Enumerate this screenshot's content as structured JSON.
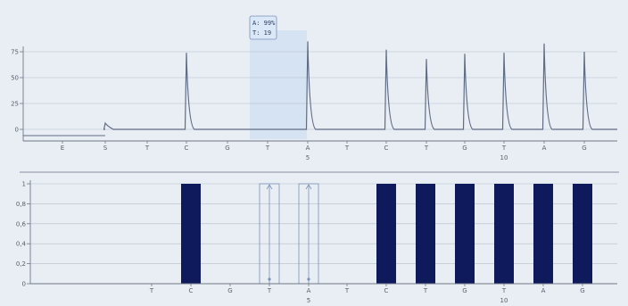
{
  "chart_data": [
    {
      "type": "line",
      "name": "pyrogram-trace",
      "yticks": [
        "75",
        "50",
        "25",
        "0"
      ],
      "ylim": [
        -8,
        90
      ],
      "sequence": [
        "E",
        "S",
        "T",
        "C",
        "G",
        "T",
        "A",
        "T",
        "C",
        "T",
        "G",
        "T",
        "A",
        "G"
      ],
      "position_labels": [
        {
          "index": 6,
          "label": "5"
        },
        {
          "index": 11,
          "label": "10"
        }
      ],
      "peaks": [
        {
          "base": "S",
          "value": 6
        },
        {
          "base": "C",
          "value": 74
        },
        {
          "base": "A",
          "value": 85
        },
        {
          "base": "C",
          "value": 77
        },
        {
          "base": "T",
          "value": 68
        },
        {
          "base": "G",
          "value": 73
        },
        {
          "base": "T",
          "value": 74
        },
        {
          "base": "A",
          "value": 83
        },
        {
          "base": "G",
          "value": 75
        }
      ],
      "tooltip": {
        "line1": "A: 99%",
        "line2": "T: 19"
      }
    },
    {
      "type": "bar",
      "name": "dispensation-histogram",
      "yticks": [
        "1",
        "0,8",
        "0,6",
        "0,4",
        "0,2",
        "0"
      ],
      "ylim": [
        0,
        1
      ],
      "categories": [
        "T",
        "C",
        "G",
        "T",
        "A",
        "T",
        "C",
        "T",
        "G",
        "T",
        "A",
        "G"
      ],
      "values": [
        0,
        1,
        0,
        0,
        0,
        0,
        1,
        1,
        1,
        1,
        1,
        1
      ],
      "outlined": [
        3,
        4
      ],
      "position_labels": [
        {
          "index": 4,
          "label": "5"
        },
        {
          "index": 9,
          "label": "10"
        }
      ]
    }
  ],
  "colors": {
    "background": "#e9eef4",
    "line": "#5f6c85",
    "bar": "#0e1a5c",
    "highlight": "#d6e3f3",
    "grid": "#b3bcc8",
    "outline": "#7a90b8"
  }
}
